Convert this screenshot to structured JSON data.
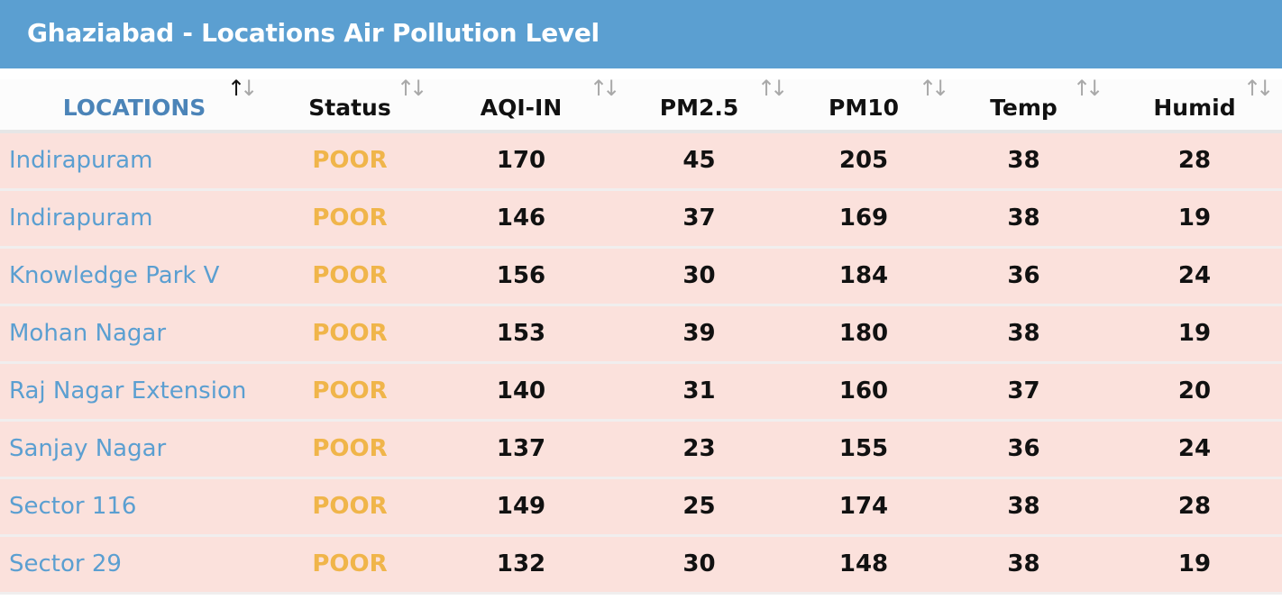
{
  "title": "Ghaziabad - Locations Air Pollution Level",
  "columns": [
    "LOCATIONS",
    "Status",
    "AQI-IN",
    "PM2.5",
    "PM10",
    "Temp",
    "Humid"
  ],
  "rows": [
    {
      "location": "Indirapuram",
      "status": "POOR",
      "aqi": "170",
      "pm25": "45",
      "pm10": "205",
      "temp": "38",
      "humid": "28"
    },
    {
      "location": "Indirapuram",
      "status": "POOR",
      "aqi": "146",
      "pm25": "37",
      "pm10": "169",
      "temp": "38",
      "humid": "19"
    },
    {
      "location": "Knowledge Park V",
      "status": "POOR",
      "aqi": "156",
      "pm25": "30",
      "pm10": "184",
      "temp": "36",
      "humid": "24"
    },
    {
      "location": "Mohan Nagar",
      "status": "POOR",
      "aqi": "153",
      "pm25": "39",
      "pm10": "180",
      "temp": "38",
      "humid": "19"
    },
    {
      "location": "Raj Nagar Extension",
      "status": "POOR",
      "aqi": "140",
      "pm25": "31",
      "pm10": "160",
      "temp": "37",
      "humid": "20"
    },
    {
      "location": "Sanjay Nagar",
      "status": "POOR",
      "aqi": "137",
      "pm25": "23",
      "pm10": "155",
      "temp": "36",
      "humid": "24"
    },
    {
      "location": "Sector 116",
      "status": "POOR",
      "aqi": "149",
      "pm25": "25",
      "pm10": "174",
      "temp": "38",
      "humid": "28"
    },
    {
      "location": "Sector 29",
      "status": "POOR",
      "aqi": "132",
      "pm25": "30",
      "pm10": "148",
      "temp": "38",
      "humid": "19"
    }
  ],
  "icons": {
    "sort": "sort-arrows-icon",
    "sort_active": "sort-ascending-icon"
  },
  "colors": {
    "header_bar": "#5b9fd1",
    "location_text": "#5b9fd1",
    "status_poor": "#f0b54a",
    "row_background": "#fbe1dc"
  }
}
